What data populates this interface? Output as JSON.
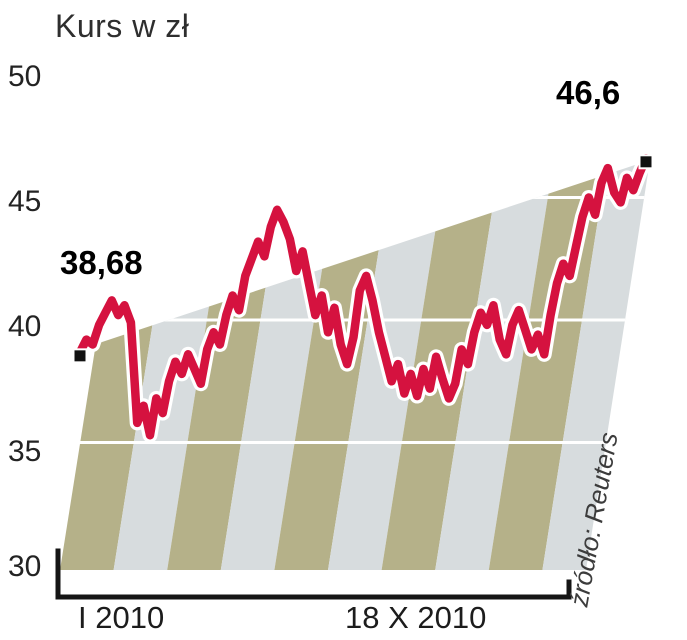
{
  "chart_data": {
    "type": "line",
    "title": "Kurs w zł",
    "ylabel": "Kurs w zł",
    "ylim": [
      30,
      50
    ],
    "yticks": [
      "50",
      "45",
      "40",
      "35",
      "30"
    ],
    "xticks": [
      "I 2010",
      "18 X 2010"
    ],
    "grid_values": [
      35,
      40,
      45
    ],
    "annotations": {
      "start": "38,68",
      "end": "46,6"
    },
    "source": "źródło: Reuters",
    "line_color": "#d5123f",
    "line_halo_color": "#ffffff",
    "marker_color": "#111111",
    "stripe_colors": [
      "#b5b189",
      "#d7dcde"
    ],
    "series": [
      {
        "name": "Kurs w zł",
        "values": [
          38.68,
          39.2,
          39.0,
          39.8,
          40.3,
          40.8,
          40.2,
          40.6,
          39.9,
          35.8,
          36.5,
          35.3,
          36.8,
          36.2,
          37.5,
          38.3,
          37.8,
          38.6,
          38.0,
          37.4,
          38.8,
          39.5,
          39.0,
          40.2,
          41.0,
          40.4,
          41.8,
          42.5,
          43.2,
          42.6,
          43.8,
          44.5,
          44.0,
          43.3,
          42.0,
          42.8,
          41.5,
          40.2,
          41.0,
          39.5,
          40.5,
          39.0,
          38.2,
          39.3,
          41.2,
          41.8,
          40.8,
          39.5,
          38.5,
          37.5,
          38.2,
          37.0,
          37.8,
          36.9,
          38.0,
          37.2,
          38.5,
          37.6,
          36.8,
          37.4,
          38.8,
          38.2,
          39.5,
          40.3,
          39.8,
          40.6,
          39.2,
          38.6,
          39.8,
          40.4,
          39.6,
          38.8,
          39.4,
          38.6,
          40.2,
          41.5,
          42.3,
          41.8,
          43.0,
          44.2,
          45.0,
          44.3,
          45.6,
          46.2,
          45.2,
          44.8,
          45.8,
          45.3,
          46.0,
          46.6
        ]
      }
    ]
  }
}
